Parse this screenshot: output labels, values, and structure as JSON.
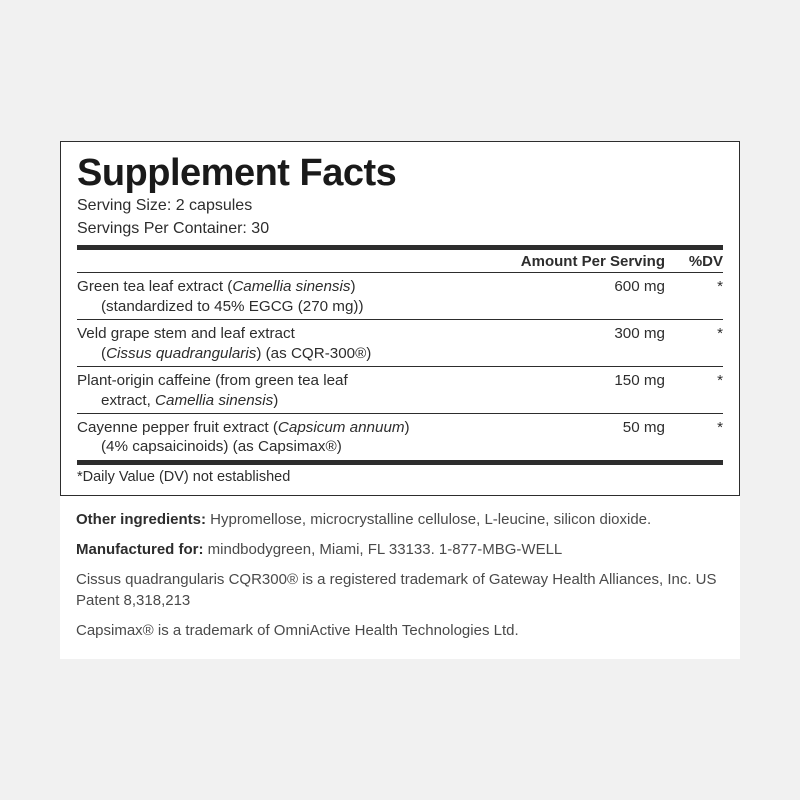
{
  "colors": {
    "page_bg": "#f1f1f1",
    "card_bg": "#ffffff",
    "rule": "#2d2d2d",
    "text": "#2d2d2d",
    "foot_text": "#4a4a4a"
  },
  "typography": {
    "title_pt": 38,
    "body_pt": 15,
    "title_weight": 800
  },
  "panel": {
    "title": "Supplement Facts",
    "serving_size_label": "Serving Size: 2 capsules",
    "servings_per_container_label": "Servings Per Container: 30",
    "header": {
      "amount": "Amount Per Serving",
      "dv": "%DV"
    },
    "rows": [
      {
        "name_html": "Green tea leaf extract (<em>Camellia sinensis</em>)",
        "detail_html": "(standardized to 45% EGCG (270 mg))",
        "amount": "600 mg",
        "dv": "*"
      },
      {
        "name_html": "Veld grape stem and leaf extract",
        "detail_html": "(<em>Cissus quadrangularis</em>) (as CQR-300®)",
        "amount": "300 mg",
        "dv": "*"
      },
      {
        "name_html": "Plant-origin caffeine (from green tea leaf",
        "detail_html": "extract, <em>Camellia sinensis</em>)",
        "amount": "150 mg",
        "dv": "*"
      },
      {
        "name_html": "Cayenne pepper fruit extract (<em>Capsicum annuum</em>)",
        "detail_html": "(4% capsaicinoids) (as Capsimax®)",
        "amount": "50 mg",
        "dv": "*"
      }
    ],
    "dv_note": "*Daily Value (DV) not established"
  },
  "footnotes": {
    "other_ingredients_label": "Other ingredients:",
    "other_ingredients_text": " Hypromellose, microcrystalline cellulose, L-leucine, silicon dioxide.",
    "manufactured_label": "Manufactured for:",
    "manufactured_text": " mindbodygreen, Miami, FL 33133. 1-877-MBG-WELL",
    "trademark1": "Cissus quadrangularis CQR300® is a registered trademark of Gateway Health Alliances, Inc. US Patent 8,318,213",
    "trademark2": "Capsimax® is a trademark of OmniActive Health Technologies Ltd."
  }
}
